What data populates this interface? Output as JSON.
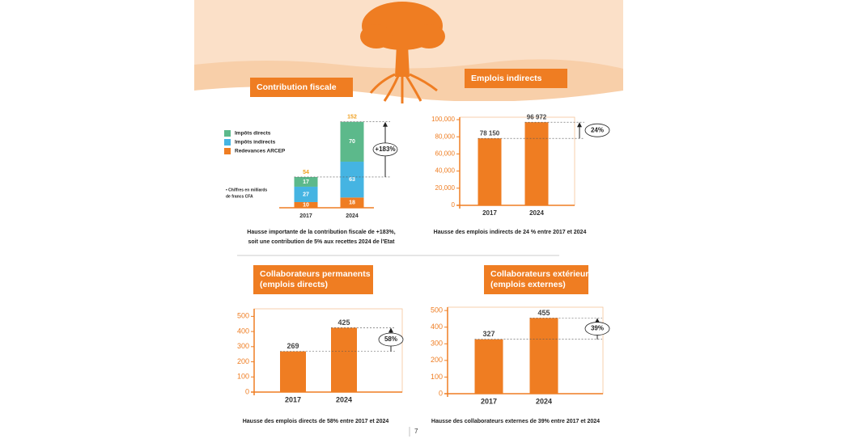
{
  "chart_data": [
    {
      "type": "stacked_bar",
      "title": [
        "Contribution fiscale"
      ],
      "categories": [
        "2017",
        "2024"
      ],
      "series": [
        {
          "name": "Redevances ARCEP",
          "color": "#ef7d22",
          "values": [
            10,
            18
          ]
        },
        {
          "name": "Impôts indirects",
          "color": "#45b4e2",
          "values": [
            27,
            63
          ]
        },
        {
          "name": "Impôts directs",
          "color": "#5cb98b",
          "values": [
            17,
            70
          ]
        }
      ],
      "totals": [
        54,
        152
      ],
      "annotation": "+183%",
      "note": [
        "• Chiffres en milliards",
        "de francs CFA"
      ],
      "caption": [
        "Hausse importante de la contribution fiscale de +183%,",
        "soit une contribution de 5% aux recettes 2024 de l'Etat"
      ]
    },
    {
      "type": "bar",
      "title": [
        "Emplois indirects"
      ],
      "categories": [
        "2017",
        "2024"
      ],
      "values": [
        78150,
        96972
      ],
      "value_labels": [
        "78 150",
        "96 972"
      ],
      "color": "#ef7d22",
      "ylim": [
        0,
        100000
      ],
      "yticks": [
        {
          "value": 0,
          "label": "0"
        },
        {
          "value": 20000,
          "label": "20,000"
        },
        {
          "value": 40000,
          "label": "40,000"
        },
        {
          "value": 60000,
          "label": "60,000"
        },
        {
          "value": 80000,
          "label": "80,000"
        },
        {
          "value": 100000,
          "label": "100,000"
        }
      ],
      "annotation": "24%",
      "caption": [
        "Hausse des emplois indirects de 24 % entre 2017 et 2024"
      ]
    },
    {
      "type": "bar",
      "title": [
        "Collaborateurs permanents",
        "(emplois directs)"
      ],
      "categories": [
        "2017",
        "2024"
      ],
      "values": [
        269,
        425
      ],
      "color": "#ef7d22",
      "ylim": [
        0,
        550
      ],
      "yticks": [
        0,
        100,
        200,
        300,
        400,
        500
      ],
      "annotation": "58%",
      "caption": [
        "Hausse des emplois directs de 58% entre 2017 et 2024"
      ]
    },
    {
      "type": "bar",
      "title": [
        "Collaborateurs extérieurs",
        "(emplois externes)"
      ],
      "categories": [
        "2017",
        "2024"
      ],
      "values": [
        327,
        455
      ],
      "color": "#ef7d22",
      "ylim": [
        0,
        520
      ],
      "yticks": [
        0,
        100,
        200,
        300,
        400,
        500
      ],
      "annotation": "39%",
      "caption": [
        "Hausse des collaborateurs externes de 39% entre 2017 et 2024"
      ]
    }
  ],
  "page_number": "7"
}
